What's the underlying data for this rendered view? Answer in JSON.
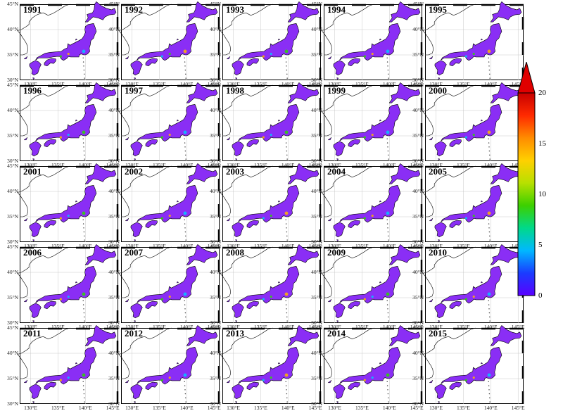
{
  "years": [
    "1991",
    "1992",
    "1993",
    "1994",
    "1995",
    "1996",
    "1997",
    "1998",
    "1999",
    "2000",
    "2001",
    "2002",
    "2003",
    "2004",
    "2005",
    "2006",
    "2007",
    "2008",
    "2009",
    "2010",
    "2011",
    "2012",
    "2013",
    "2014",
    "2015"
  ],
  "lat_labels": [
    "45°N",
    "40°N",
    "35°N",
    "30°N"
  ],
  "lon_labels": [
    "130°E",
    "135°E",
    "140°E",
    "145°E"
  ],
  "colorbar": {
    "ticks": [
      "20",
      "15",
      "10",
      "5",
      "0"
    ],
    "min": 0,
    "max": 20,
    "extend": "max",
    "colors": [
      "#5a00ff",
      "#1a3cff",
      "#00b8ff",
      "#00d98a",
      "#3cd000",
      "#b8e000",
      "#ffd000",
      "#ff8c00",
      "#ff2a00",
      "#c80000"
    ]
  },
  "map_colors": {
    "land": "#8a2ef5",
    "coast": "#000000",
    "grid": "#c8c8c8",
    "hotspot_low": "#00c8ff",
    "hotspot_mid": "#2ad700",
    "hotspot_high": "#ffb400"
  }
}
